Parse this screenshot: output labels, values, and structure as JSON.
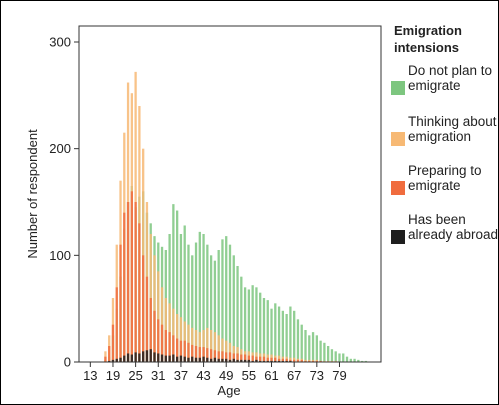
{
  "chart_data": {
    "type": "bar",
    "title": "",
    "xlabel": "Age",
    "ylabel": "Number of respondent",
    "xlim": [
      10,
      90
    ],
    "ylim": [
      0,
      315
    ],
    "x_ticks": [
      "13",
      "19",
      "25",
      "31",
      "37",
      "43",
      "49",
      "55",
      "61",
      "67",
      "73",
      "79"
    ],
    "y_ticks": [
      "0",
      "100",
      "200",
      "300"
    ],
    "legend_title": [
      "Emigration",
      "intensions"
    ],
    "legend_position": "right",
    "grid": false,
    "series": [
      {
        "name": "Do not plan to emigrate",
        "label_lines": [
          "Do not plan to",
          "emigrate"
        ],
        "color": "#7dc67f",
        "values": [
          0,
          0,
          0,
          0,
          2,
          5,
          25,
          50,
          80,
          125,
          150,
          165,
          145,
          155,
          160,
          140,
          130,
          118,
          112,
          108,
          105,
          120,
          148,
          142,
          120,
          128,
          110,
          100,
          112,
          122,
          120,
          110,
          100,
          95,
          105,
          115,
          118,
          110,
          100,
          90,
          80,
          70,
          68,
          72,
          70,
          65,
          60,
          58,
          50,
          55,
          52,
          48,
          45,
          52,
          48,
          40,
          35,
          30,
          25,
          28,
          25,
          20,
          18,
          15,
          12,
          10,
          8,
          8,
          5,
          3,
          3,
          2,
          1,
          1
        ]
      },
      {
        "name": "Thinking about emigration",
        "label_lines": [
          "Thinking about",
          "emigration"
        ],
        "color": "#f7b974",
        "values": [
          0,
          0,
          0,
          0,
          10,
          25,
          60,
          110,
          170,
          215,
          262,
          252,
          272,
          240,
          200,
          150,
          120,
          100,
          85,
          70,
          60,
          55,
          50,
          45,
          42,
          38,
          35,
          32,
          30,
          28,
          30,
          32,
          30,
          28,
          25,
          22,
          20,
          18,
          15,
          14,
          12,
          10,
          10,
          9,
          9,
          8,
          8,
          7,
          7,
          6,
          6,
          5,
          5,
          4,
          4,
          3,
          3,
          2,
          2,
          2,
          2,
          1,
          1,
          1,
          1,
          1,
          0,
          0,
          0,
          0,
          0,
          0,
          0,
          0
        ]
      },
      {
        "name": "Preparing to emigrate",
        "label_lines": [
          "Preparing to",
          "emigrate"
        ],
        "color": "#f06c3e",
        "values": [
          0,
          0,
          0,
          0,
          5,
          15,
          35,
          70,
          110,
          140,
          150,
          160,
          150,
          130,
          100,
          80,
          60,
          48,
          40,
          35,
          30,
          28,
          25,
          22,
          20,
          20,
          18,
          16,
          15,
          14,
          14,
          13,
          12,
          11,
          10,
          10,
          9,
          9,
          8,
          8,
          7,
          7,
          6,
          6,
          5,
          5,
          5,
          4,
          4,
          4,
          3,
          3,
          3,
          2,
          2,
          2,
          2,
          1,
          1,
          1,
          1,
          1,
          0,
          0,
          0,
          0,
          0,
          0,
          0,
          0,
          0,
          0,
          0,
          0
        ]
      },
      {
        "name": "Has been already abroad",
        "label_lines": [
          "Has been",
          "already abroad"
        ],
        "color": "#1e1e1e",
        "values": [
          0,
          0,
          0,
          0,
          0,
          1,
          2,
          3,
          4,
          6,
          8,
          7,
          9,
          8,
          10,
          11,
          12,
          9,
          8,
          7,
          6,
          6,
          7,
          5,
          6,
          5,
          4,
          5,
          4,
          4,
          5,
          4,
          3,
          4,
          3,
          3,
          3,
          2,
          3,
          2,
          2,
          2,
          2,
          1,
          2,
          1,
          1,
          1,
          1,
          1,
          1,
          1,
          1,
          1,
          0,
          0,
          0,
          0,
          0,
          0,
          0,
          0,
          0,
          0,
          0,
          0,
          0,
          0,
          0,
          0,
          0,
          0,
          0,
          0
        ]
      }
    ]
  }
}
